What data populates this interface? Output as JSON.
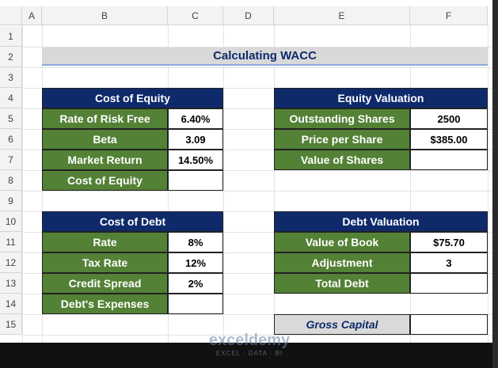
{
  "sheet": {
    "columns": [
      "A",
      "B",
      "C",
      "D",
      "E",
      "F"
    ],
    "rows": [
      "1",
      "2",
      "3",
      "4",
      "5",
      "6",
      "7",
      "8",
      "9",
      "10",
      "11",
      "12",
      "13",
      "14",
      "15"
    ]
  },
  "title": "Calculating WACC",
  "tables": [
    {
      "header": "Cost of Equity",
      "rows": [
        {
          "label": "Rate of Risk Free",
          "value": "6.40%"
        },
        {
          "label": "Beta",
          "value": "3.09"
        },
        {
          "label": "Market Return",
          "value": "14.50%"
        },
        {
          "label": "Cost of Equity"
        }
      ]
    },
    {
      "header": "Cost of Debt",
      "rows": [
        {
          "label": "Rate",
          "value": "8%"
        },
        {
          "label": "Tax Rate",
          "value": "12%"
        },
        {
          "label": "Credit Spread",
          "value": "2%"
        },
        {
          "label": "Debt's Expenses"
        }
      ]
    },
    {
      "header": "Equity Valuation",
      "rows": [
        {
          "label": "Outstanding Shares",
          "value": "2500"
        },
        {
          "label": "Price per Share",
          "value": "$385.00"
        },
        {
          "label": "Value of Shares"
        }
      ]
    },
    {
      "header": "Debt Valuation",
      "rows": [
        {
          "label": "Value of Book",
          "value": "$75.70"
        },
        {
          "label": "Adjustment",
          "value": "3"
        },
        {
          "label": "Total Debt"
        }
      ]
    }
  ],
  "gross_capital": {
    "label": "Gross Capital"
  },
  "watermark": {
    "name": "exceldemy",
    "tagline": "EXCEL · DATA · BI"
  }
}
